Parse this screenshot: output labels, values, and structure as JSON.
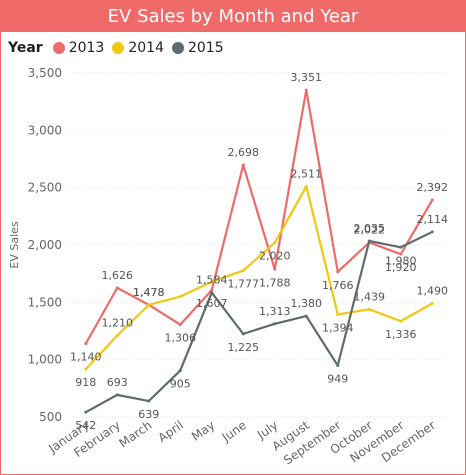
{
  "chart_data": {
    "type": "line",
    "title": "EV Sales by Month and Year",
    "legend_title": "Year",
    "legend_position": "top-left",
    "ylabel": "EV Sales",
    "xlabel": "",
    "ylim": [
      500,
      3500
    ],
    "yticks": [
      500,
      1000,
      1500,
      2000,
      2500,
      3000,
      3500
    ],
    "ytick_labels": [
      "500",
      "1,000",
      "1,500",
      "2,000",
      "2,500",
      "3,000",
      "3,500"
    ],
    "grid": true,
    "categories": [
      "January",
      "February",
      "March",
      "April",
      "May",
      "June",
      "July",
      "August",
      "September",
      "October",
      "November",
      "December"
    ],
    "series": [
      {
        "name": "2013",
        "color": "#f06a6a",
        "values": [
          1140,
          1626,
          1478,
          1306,
          1607,
          2698,
          1788,
          3351,
          1766,
          2022,
          1920,
          2392
        ],
        "labels": [
          "1,140",
          "1,626",
          "1,478",
          "1,306",
          "1,607",
          "2,698",
          "1,788",
          "3,351",
          "1,766",
          "2,022",
          "1,920",
          "2,392"
        ]
      },
      {
        "name": "2014",
        "color": "#f2c80f",
        "values": [
          918,
          1210,
          1478,
          1550,
          1680,
          1777,
          2020,
          2511,
          1394,
          1439,
          1336,
          1490
        ],
        "labels": [
          "918",
          "1,210",
          "1,478",
          "",
          "",
          "1,777",
          "2,020",
          "2,511",
          "1,394",
          "1,439",
          "1,336",
          "1,490"
        ]
      },
      {
        "name": "2015",
        "color": "#5f6b6d",
        "values": [
          542,
          693,
          639,
          905,
          1584,
          1225,
          1313,
          1380,
          949,
          2035,
          1980,
          2114
        ],
        "labels": [
          "542",
          "693",
          "639",
          "905",
          "1,584",
          "1,225",
          "1,313",
          "1,380",
          "949",
          "2,035",
          "1,980",
          "2,114"
        ]
      }
    ]
  }
}
